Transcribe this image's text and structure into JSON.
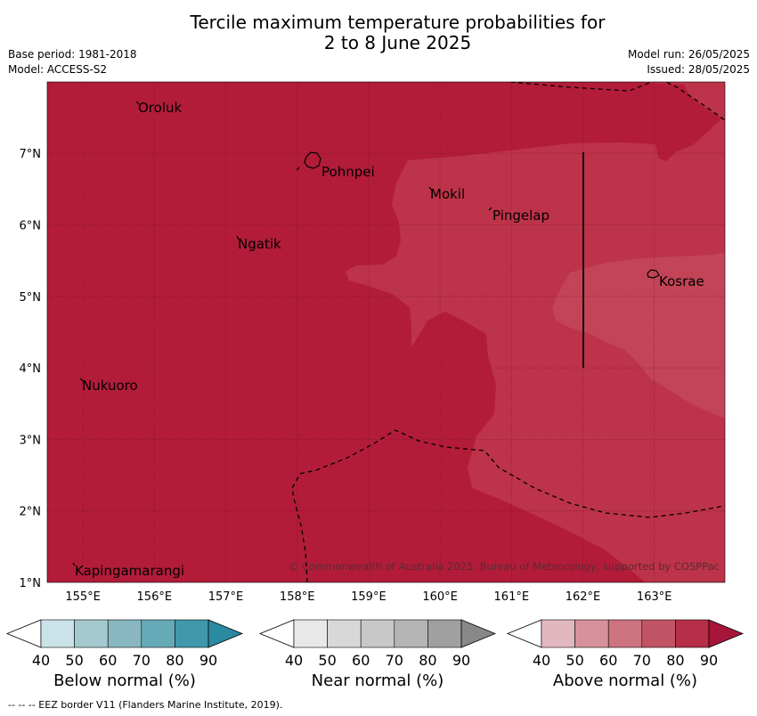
{
  "title": {
    "line1": "Tercile maximum temperature probabilities for",
    "line2": "2 to 8 June 2025"
  },
  "meta": {
    "base_period": "Base period: 1981-2018",
    "model": "Model: ACCESS-S2",
    "model_run": "Model run: 26/05/2025",
    "issued": "Issued: 28/05/2025"
  },
  "map": {
    "lon_ticks": [
      "155°E",
      "156°E",
      "157°E",
      "158°E",
      "159°E",
      "160°E",
      "161°E",
      "162°E",
      "163°E"
    ],
    "lat_ticks": [
      "7°N",
      "6°N",
      "5°N",
      "4°N",
      "3°N",
      "2°N",
      "1°N"
    ],
    "places": [
      "Oroluk",
      "Pohnpei",
      "Mokil",
      "Pingelap",
      "Ngatik",
      "Kosrae",
      "Nukuoro",
      "Kapingamarangi"
    ],
    "copyright": "© Commonwealth of Australia 2025, Bureau of Meteorology, supported by COSPPac",
    "colors": {
      "above_80": "#b31c39",
      "above_70": "#bd3349",
      "above_60": "#c24456",
      "coast": "#000000",
      "eez": "#000000"
    }
  },
  "colorbars": [
    {
      "label": "Below normal (%)",
      "ticks": [
        "40",
        "50",
        "60",
        "70",
        "80",
        "90"
      ],
      "colors": [
        "#ffffff",
        "#c9e3e8",
        "#a4c9cf",
        "#88b7c1",
        "#66aab8",
        "#4198ac",
        "#2a8aa2"
      ]
    },
    {
      "label": "Near normal (%)",
      "ticks": [
        "40",
        "50",
        "60",
        "70",
        "80",
        "90"
      ],
      "colors": [
        "#ffffff",
        "#e8e8e8",
        "#d8d8d8",
        "#c8c8c8",
        "#b4b4b4",
        "#a0a0a0",
        "#888888"
      ]
    },
    {
      "label": "Above normal (%)",
      "ticks": [
        "40",
        "50",
        "60",
        "70",
        "80",
        "90"
      ],
      "colors": [
        "#ffffff",
        "#e2b8c0",
        "#d6919c",
        "#cc737f",
        "#c15464",
        "#b62e47",
        "#a8153b"
      ]
    }
  ],
  "footnote": "--  --  -- EEZ border V11 (Flanders Marine Institute, 2019)."
}
